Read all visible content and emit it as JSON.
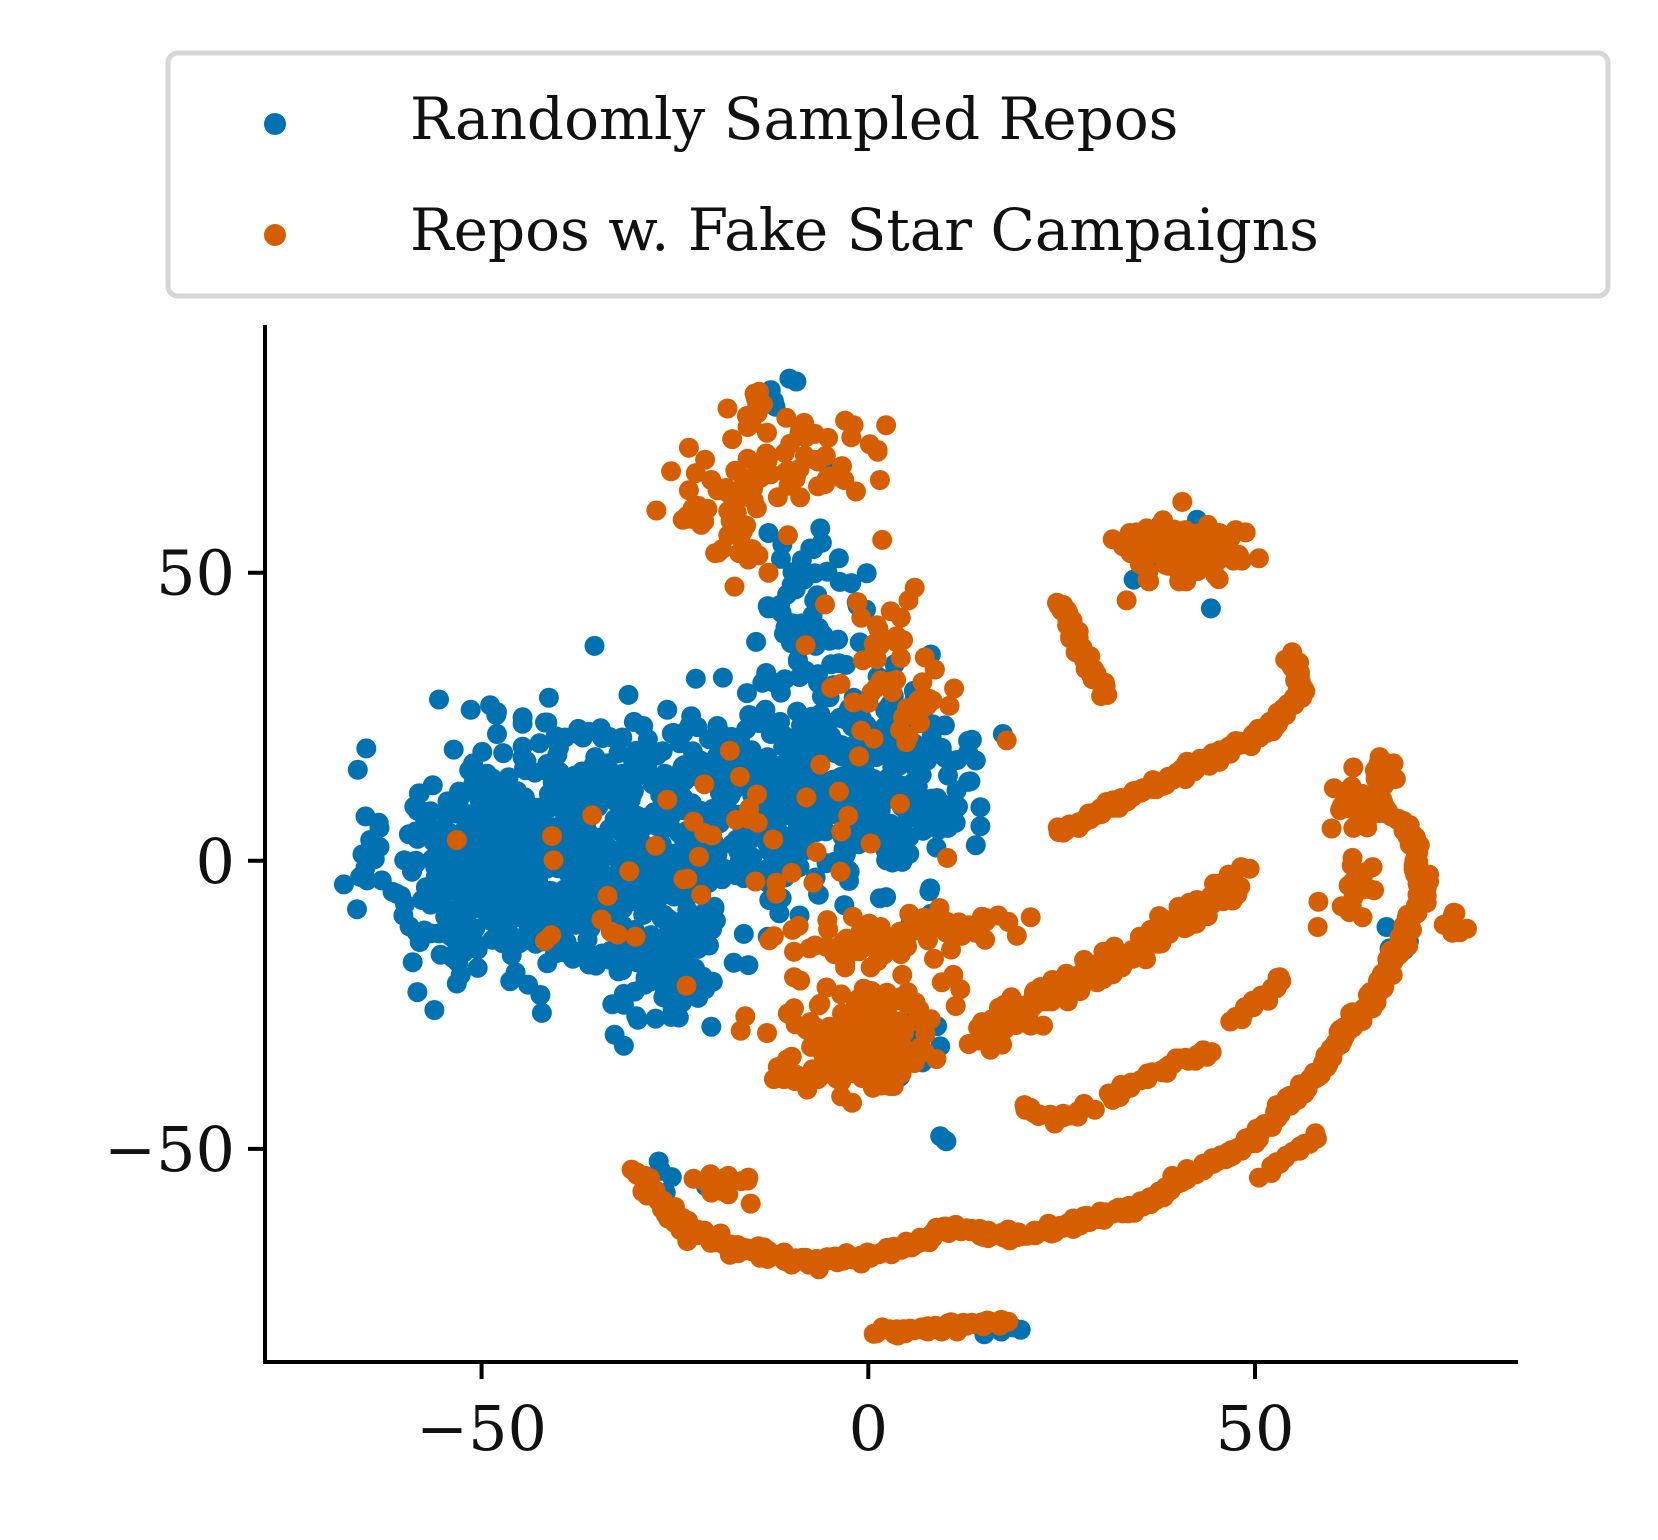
{
  "chart_data": {
    "type": "scatter",
    "title": "",
    "xlabel": "",
    "ylabel": "",
    "xlim": [
      -78,
      84
    ],
    "ylim": [
      -87,
      93
    ],
    "xticks": [
      -50,
      0,
      50
    ],
    "yticks": [
      -50,
      0,
      50
    ],
    "xtick_labels": [
      "−50",
      "0",
      "50"
    ],
    "ytick_labels": [
      "−50",
      "0",
      "50"
    ],
    "grid": false,
    "legend_position": "top",
    "series": [
      {
        "name": "Randomly Sampled Repos",
        "color": "#0072B2",
        "points": []
      },
      {
        "name": "Repos w. Fake Star Campaigns",
        "color": "#D55E00",
        "points": []
      }
    ]
  }
}
